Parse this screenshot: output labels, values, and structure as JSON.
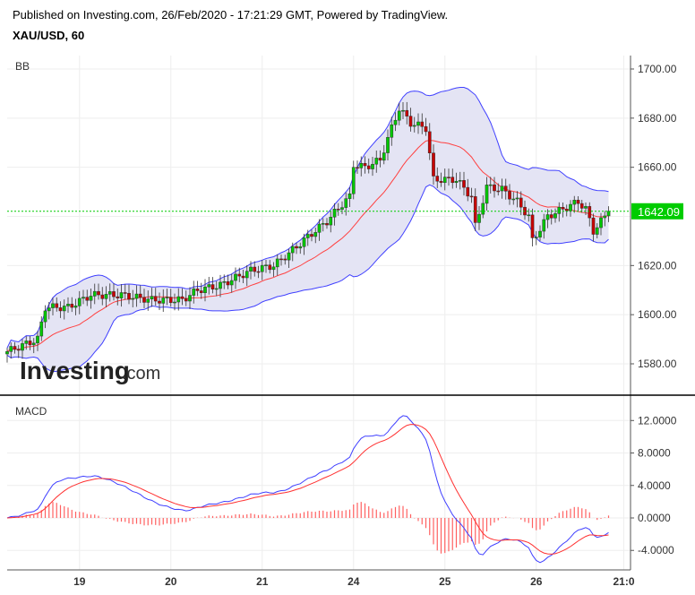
{
  "header": {
    "published": "Published on Investing.com, 26/Feb/2020 - 17:21:29 GMT, Powered by TradingView.",
    "symbol": "XAU/USD, 60"
  },
  "logo": {
    "text": "Investing",
    "suffix": ".com"
  },
  "colors": {
    "up": "#00c800",
    "down": "#c80000",
    "band": "#4040ff",
    "basis": "#ff4040",
    "bandFill": "#e4e4f4",
    "macd": "#4040ff",
    "signal": "#ff3030",
    "hist": "#ff6060",
    "last": "#00cc00"
  },
  "chart_data": [
    {
      "type": "candlestick",
      "title": "BB",
      "ylim": [
        1565,
        1710
      ],
      "y_ticks": [
        "1700.00",
        "1680.00",
        "1660.00",
        "1640.00",
        "1620.00",
        "1600.00",
        "1580.00"
      ],
      "y_tick_values": [
        1700,
        1680,
        1660,
        1640,
        1620,
        1600,
        1580
      ],
      "last_price": "1642.09",
      "last_value": 1642.09,
      "x_labels": [
        "19",
        "20",
        "21",
        "24",
        "25",
        "26",
        "21:0"
      ],
      "x_label_bars": [
        19,
        43,
        67,
        91,
        115,
        139,
        162
      ],
      "close_anchors": [
        [
          0,
          1585
        ],
        [
          8,
          1590
        ],
        [
          10,
          1603
        ],
        [
          16,
          1603
        ],
        [
          22,
          1608
        ],
        [
          30,
          1608
        ],
        [
          38,
          1606
        ],
        [
          46,
          1606
        ],
        [
          50,
          1610
        ],
        [
          56,
          1612
        ],
        [
          64,
          1618
        ],
        [
          70,
          1620
        ],
        [
          74,
          1625
        ],
        [
          80,
          1633
        ],
        [
          84,
          1638
        ],
        [
          88,
          1645
        ],
        [
          90,
          1648
        ],
        [
          91,
          1661
        ],
        [
          94,
          1660
        ],
        [
          98,
          1663
        ],
        [
          101,
          1676
        ],
        [
          103,
          1684
        ],
        [
          106,
          1678
        ],
        [
          110,
          1676
        ],
        [
          112,
          1655
        ],
        [
          118,
          1655
        ],
        [
          122,
          1648
        ],
        [
          123,
          1636
        ],
        [
          126,
          1652
        ],
        [
          130,
          1651
        ],
        [
          134,
          1646
        ],
        [
          137,
          1640
        ],
        [
          138,
          1630
        ],
        [
          142,
          1640
        ],
        [
          146,
          1643
        ],
        [
          150,
          1646
        ],
        [
          152,
          1643
        ],
        [
          154,
          1634
        ],
        [
          158,
          1642
        ]
      ]
    },
    {
      "type": "macd",
      "title": "MACD",
      "ylim": [
        -5.5,
        14
      ],
      "y_ticks": [
        "12.0000",
        "8.0000",
        "4.0000",
        "0.0000",
        "-4.0000"
      ],
      "y_tick_values": [
        12,
        8,
        4,
        0,
        -4
      ]
    }
  ]
}
